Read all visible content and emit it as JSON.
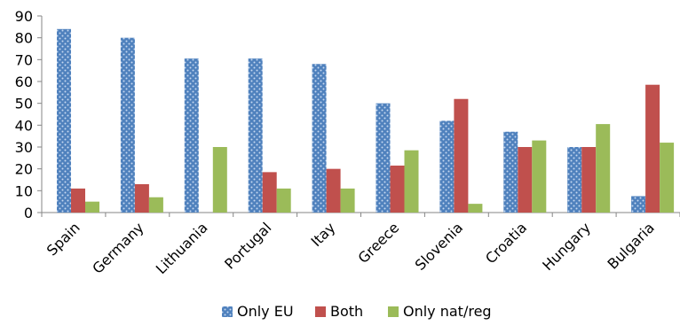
{
  "chart_data": {
    "type": "bar",
    "categories": [
      "Spain",
      "Germany",
      "Lithuania",
      "Portugal",
      "Itay",
      "Greece",
      "Slovenia",
      "Croatia",
      "Hungary",
      "Bulgaria"
    ],
    "series": [
      {
        "name": "Only EU",
        "color": "#4F81BD",
        "pattern": "dotted",
        "values": [
          84,
          80,
          70.5,
          70.5,
          68,
          50,
          42,
          37,
          30,
          7.5
        ]
      },
      {
        "name": "Both",
        "color": "#C0504D",
        "values": [
          11,
          13,
          0,
          18.5,
          20,
          21.5,
          52,
          30,
          30,
          58.5
        ]
      },
      {
        "name": "Only nat/reg",
        "color": "#9BBB59",
        "values": [
          5,
          7,
          30,
          11,
          11,
          28.5,
          4,
          33,
          40.5,
          32
        ]
      }
    ],
    "ylim": [
      0,
      90
    ],
    "yticks": [
      "0",
      "10",
      "20",
      "30",
      "40",
      "50",
      "60",
      "70",
      "80",
      "90"
    ],
    "title": "",
    "xlabel": "",
    "ylabel": "",
    "grid": false,
    "legend_position": "bottom"
  }
}
